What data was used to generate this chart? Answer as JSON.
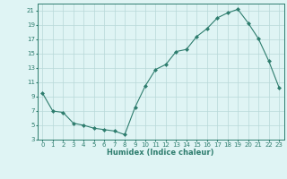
{
  "x": [
    0,
    1,
    2,
    3,
    4,
    5,
    6,
    7,
    8,
    9,
    10,
    11,
    12,
    13,
    14,
    15,
    16,
    17,
    18,
    19,
    20,
    21,
    22,
    23
  ],
  "y": [
    9.5,
    7.0,
    6.8,
    5.3,
    5.0,
    4.6,
    4.4,
    4.2,
    3.7,
    7.5,
    10.5,
    12.8,
    13.5,
    15.3,
    15.6,
    17.4,
    18.5,
    20.0,
    20.7,
    21.2,
    19.3,
    17.1,
    14.0,
    10.3
  ],
  "xlabel": "Humidex (Indice chaleur)",
  "xlim_min": -0.5,
  "xlim_max": 23.5,
  "ylim_min": 3,
  "ylim_max": 22,
  "yticks": [
    3,
    5,
    7,
    9,
    11,
    13,
    15,
    17,
    19,
    21
  ],
  "xticks": [
    0,
    1,
    2,
    3,
    4,
    5,
    6,
    7,
    8,
    9,
    10,
    11,
    12,
    13,
    14,
    15,
    16,
    17,
    18,
    19,
    20,
    21,
    22,
    23
  ],
  "line_color": "#2e7d6e",
  "marker_color": "#2e7d6e",
  "bg_color": "#dff4f4",
  "grid_color": "#b8d8d8",
  "axis_color": "#2e7d6e",
  "tick_fontsize": 5.0,
  "xlabel_fontsize": 6.0
}
